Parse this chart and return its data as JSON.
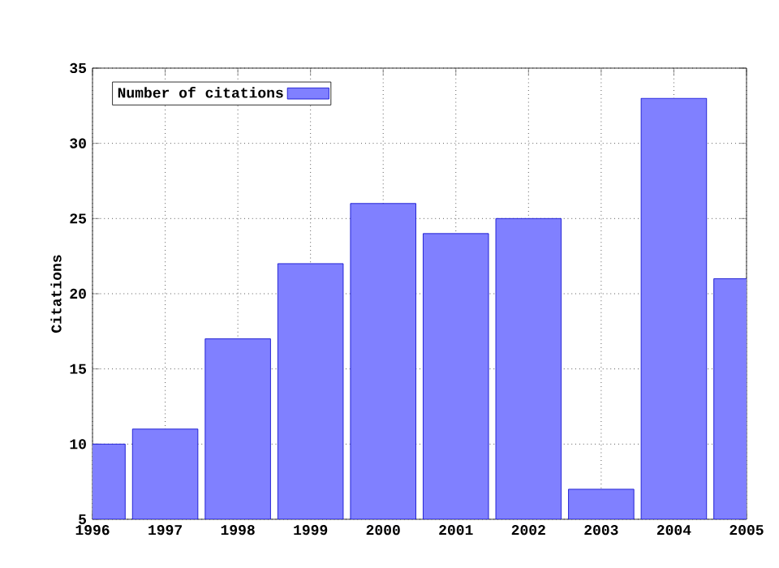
{
  "chart_data": {
    "type": "bar",
    "ylabel": "Citations",
    "x": [
      1996,
      1997,
      1998,
      1999,
      2000,
      2001,
      2002,
      2003,
      2004,
      2005
    ],
    "series": [
      {
        "name": "Number of citations",
        "color": "#8080ff",
        "values": [
          10,
          11,
          17,
          22,
          26,
          24,
          25,
          7,
          33,
          21
        ]
      }
    ],
    "xlim": [
      1996,
      2005
    ],
    "ylim": [
      5,
      35
    ],
    "xticks": [
      1996,
      1997,
      1998,
      1999,
      2000,
      2001,
      2002,
      2003,
      2004,
      2005
    ],
    "yticks": [
      5,
      10,
      15,
      20,
      25,
      30,
      35
    ],
    "grid": true,
    "legend": "top left"
  }
}
